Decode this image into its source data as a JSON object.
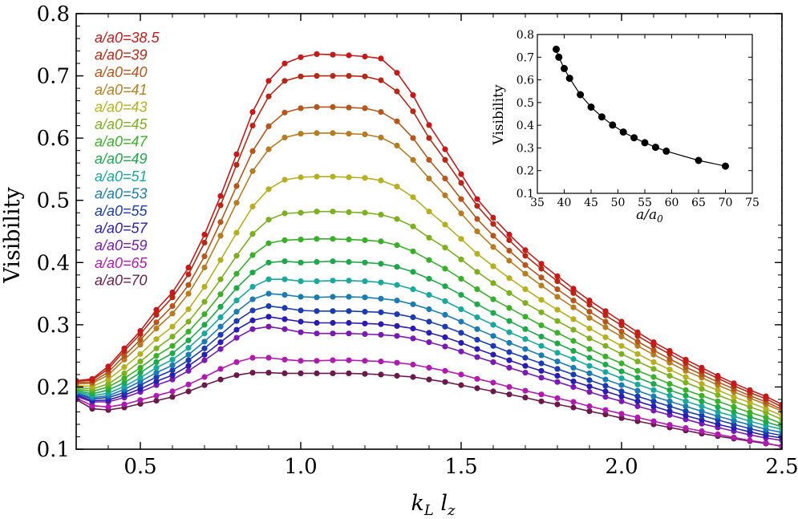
{
  "chart_data": [
    {
      "type": "line",
      "title": "",
      "xlabel": "k_L l_z",
      "ylabel": "Visibility",
      "xlim": [
        0.3,
        2.5
      ],
      "ylim": [
        0.1,
        0.8
      ],
      "xticks": [
        "0.5",
        "1.0",
        "1.5",
        "2.0",
        "2.5"
      ],
      "yticks": [
        "0.1",
        "0.2",
        "0.3",
        "0.4",
        "0.5",
        "0.6",
        "0.7",
        "0.8"
      ],
      "legend_position": "top-left",
      "x": [
        0.3,
        0.35,
        0.4,
        0.45,
        0.5,
        0.55,
        0.6,
        0.65,
        0.7,
        0.75,
        0.8,
        0.85,
        0.9,
        0.95,
        1.0,
        1.05,
        1.1,
        1.15,
        1.2,
        1.25,
        1.3,
        1.35,
        1.4,
        1.45,
        1.5,
        1.55,
        1.6,
        1.65,
        1.7,
        1.75,
        1.8,
        1.85,
        1.9,
        1.95,
        2.0,
        2.05,
        2.1,
        2.15,
        2.2,
        2.25,
        2.3,
        2.35,
        2.4,
        2.45,
        2.5
      ],
      "series": [
        {
          "name": "a/a0=38.5",
          "color": "#c41a1a",
          "values": [
            0.21,
            0.213,
            0.233,
            0.262,
            0.29,
            0.324,
            0.352,
            0.392,
            0.445,
            0.507,
            0.574,
            0.642,
            0.692,
            0.72,
            0.73,
            0.735,
            0.734,
            0.733,
            0.731,
            0.728,
            0.705,
            0.669,
            0.621,
            0.582,
            0.542,
            0.502,
            0.472,
            0.445,
            0.42,
            0.398,
            0.378,
            0.358,
            0.339,
            0.322,
            0.305,
            0.288,
            0.272,
            0.258,
            0.244,
            0.231,
            0.218,
            0.206,
            0.195,
            0.185,
            0.172
          ]
        },
        {
          "name": "a/a0=39",
          "color": "#b52a16",
          "values": [
            0.209,
            0.211,
            0.229,
            0.258,
            0.285,
            0.316,
            0.344,
            0.381,
            0.432,
            0.492,
            0.557,
            0.62,
            0.667,
            0.692,
            0.699,
            0.7,
            0.7,
            0.7,
            0.699,
            0.693,
            0.675,
            0.643,
            0.6,
            0.565,
            0.528,
            0.491,
            0.462,
            0.436,
            0.411,
            0.39,
            0.37,
            0.351,
            0.332,
            0.315,
            0.299,
            0.282,
            0.267,
            0.253,
            0.239,
            0.226,
            0.214,
            0.202,
            0.191,
            0.181,
            0.168
          ]
        },
        {
          "name": "a/a0=40",
          "color": "#b5561c",
          "values": [
            0.207,
            0.208,
            0.224,
            0.25,
            0.276,
            0.304,
            0.33,
            0.364,
            0.41,
            0.465,
            0.523,
            0.579,
            0.619,
            0.641,
            0.648,
            0.65,
            0.65,
            0.649,
            0.648,
            0.642,
            0.627,
            0.6,
            0.565,
            0.535,
            0.502,
            0.47,
            0.443,
            0.419,
            0.396,
            0.376,
            0.357,
            0.339,
            0.321,
            0.305,
            0.289,
            0.273,
            0.259,
            0.245,
            0.232,
            0.22,
            0.208,
            0.197,
            0.186,
            0.176,
            0.164
          ]
        },
        {
          "name": "a/a0=41",
          "color": "#b67c22",
          "values": [
            0.205,
            0.206,
            0.219,
            0.244,
            0.268,
            0.294,
            0.318,
            0.35,
            0.392,
            0.443,
            0.496,
            0.547,
            0.582,
            0.601,
            0.607,
            0.608,
            0.608,
            0.607,
            0.606,
            0.601,
            0.588,
            0.565,
            0.535,
            0.508,
            0.479,
            0.45,
            0.425,
            0.403,
            0.382,
            0.363,
            0.345,
            0.328,
            0.311,
            0.296,
            0.281,
            0.266,
            0.252,
            0.239,
            0.226,
            0.215,
            0.203,
            0.192,
            0.182,
            0.172,
            0.161
          ]
        },
        {
          "name": "a/a0=43",
          "color": "#b5b020",
          "values": [
            0.202,
            0.201,
            0.212,
            0.232,
            0.253,
            0.277,
            0.297,
            0.325,
            0.361,
            0.404,
            0.448,
            0.49,
            0.518,
            0.533,
            0.537,
            0.538,
            0.538,
            0.537,
            0.536,
            0.532,
            0.522,
            0.505,
            0.482,
            0.461,
            0.438,
            0.414,
            0.394,
            0.375,
            0.357,
            0.34,
            0.324,
            0.309,
            0.294,
            0.28,
            0.266,
            0.253,
            0.24,
            0.228,
            0.216,
            0.205,
            0.195,
            0.184,
            0.175,
            0.165,
            0.154
          ]
        },
        {
          "name": "a/a0=45",
          "color": "#7cb020",
          "values": [
            0.199,
            0.197,
            0.205,
            0.222,
            0.241,
            0.262,
            0.281,
            0.305,
            0.337,
            0.373,
            0.411,
            0.446,
            0.469,
            0.479,
            0.48,
            0.482,
            0.482,
            0.481,
            0.48,
            0.477,
            0.47,
            0.458,
            0.44,
            0.424,
            0.405,
            0.385,
            0.367,
            0.351,
            0.335,
            0.32,
            0.306,
            0.292,
            0.278,
            0.266,
            0.253,
            0.241,
            0.229,
            0.218,
            0.207,
            0.197,
            0.187,
            0.177,
            0.168,
            0.159,
            0.148
          ]
        },
        {
          "name": "a/a0=47",
          "color": "#3ab02a",
          "values": [
            0.197,
            0.193,
            0.2,
            0.214,
            0.231,
            0.25,
            0.266,
            0.289,
            0.317,
            0.349,
            0.382,
            0.412,
            0.431,
            0.436,
            0.437,
            0.438,
            0.438,
            0.437,
            0.436,
            0.434,
            0.428,
            0.418,
            0.404,
            0.39,
            0.374,
            0.357,
            0.341,
            0.327,
            0.313,
            0.299,
            0.287,
            0.274,
            0.261,
            0.249,
            0.238,
            0.226,
            0.216,
            0.205,
            0.195,
            0.186,
            0.177,
            0.168,
            0.159,
            0.151,
            0.141
          ]
        },
        {
          "name": "a/a0=49",
          "color": "#1fa84a",
          "values": [
            0.195,
            0.189,
            0.195,
            0.207,
            0.223,
            0.24,
            0.254,
            0.275,
            0.3,
            0.329,
            0.359,
            0.384,
            0.4,
            0.402,
            0.4,
            0.401,
            0.402,
            0.401,
            0.4,
            0.398,
            0.393,
            0.385,
            0.374,
            0.362,
            0.348,
            0.333,
            0.319,
            0.306,
            0.293,
            0.281,
            0.27,
            0.258,
            0.247,
            0.236,
            0.225,
            0.215,
            0.205,
            0.195,
            0.186,
            0.177,
            0.168,
            0.16,
            0.152,
            0.144,
            0.136
          ]
        },
        {
          "name": "a/a0=51",
          "color": "#1aa89c",
          "values": [
            0.193,
            0.186,
            0.19,
            0.201,
            0.215,
            0.231,
            0.244,
            0.263,
            0.286,
            0.312,
            0.339,
            0.361,
            0.373,
            0.373,
            0.37,
            0.37,
            0.371,
            0.371,
            0.37,
            0.368,
            0.364,
            0.357,
            0.348,
            0.338,
            0.325,
            0.312,
            0.3,
            0.288,
            0.277,
            0.266,
            0.255,
            0.245,
            0.234,
            0.224,
            0.214,
            0.204,
            0.195,
            0.186,
            0.177,
            0.169,
            0.16,
            0.153,
            0.145,
            0.138,
            0.132
          ]
        },
        {
          "name": "a/a0=53",
          "color": "#1a7cb0",
          "values": [
            0.191,
            0.183,
            0.186,
            0.196,
            0.209,
            0.223,
            0.235,
            0.252,
            0.273,
            0.297,
            0.321,
            0.341,
            0.35,
            0.348,
            0.345,
            0.344,
            0.345,
            0.345,
            0.344,
            0.342,
            0.339,
            0.333,
            0.325,
            0.316,
            0.305,
            0.293,
            0.282,
            0.271,
            0.261,
            0.251,
            0.241,
            0.231,
            0.222,
            0.212,
            0.203,
            0.194,
            0.185,
            0.177,
            0.169,
            0.161,
            0.153,
            0.146,
            0.139,
            0.132,
            0.127
          ]
        },
        {
          "name": "a/a0=55",
          "color": "#1a3cb0",
          "values": [
            0.189,
            0.181,
            0.183,
            0.191,
            0.203,
            0.216,
            0.227,
            0.243,
            0.262,
            0.284,
            0.306,
            0.323,
            0.33,
            0.327,
            0.323,
            0.322,
            0.322,
            0.322,
            0.321,
            0.32,
            0.317,
            0.312,
            0.305,
            0.297,
            0.287,
            0.276,
            0.266,
            0.256,
            0.247,
            0.238,
            0.229,
            0.22,
            0.211,
            0.202,
            0.193,
            0.185,
            0.177,
            0.169,
            0.161,
            0.154,
            0.147,
            0.14,
            0.133,
            0.127,
            0.122
          ]
        },
        {
          "name": "a/a0=57",
          "color": "#2a1cb0",
          "values": [
            0.187,
            0.178,
            0.179,
            0.187,
            0.197,
            0.209,
            0.219,
            0.234,
            0.252,
            0.272,
            0.292,
            0.307,
            0.313,
            0.309,
            0.305,
            0.303,
            0.303,
            0.303,
            0.302,
            0.301,
            0.298,
            0.294,
            0.287,
            0.28,
            0.271,
            0.261,
            0.252,
            0.243,
            0.234,
            0.226,
            0.218,
            0.209,
            0.201,
            0.193,
            0.185,
            0.177,
            0.169,
            0.161,
            0.154,
            0.147,
            0.14,
            0.134,
            0.128,
            0.122,
            0.118
          ]
        },
        {
          "name": "a/a0=59",
          "color": "#7a1ab0",
          "values": [
            0.185,
            0.176,
            0.176,
            0.183,
            0.192,
            0.203,
            0.212,
            0.226,
            0.243,
            0.261,
            0.279,
            0.293,
            0.297,
            0.293,
            0.288,
            0.286,
            0.286,
            0.286,
            0.285,
            0.284,
            0.282,
            0.278,
            0.272,
            0.265,
            0.257,
            0.248,
            0.24,
            0.231,
            0.223,
            0.215,
            0.208,
            0.2,
            0.192,
            0.184,
            0.177,
            0.169,
            0.162,
            0.155,
            0.148,
            0.141,
            0.135,
            0.129,
            0.123,
            0.118,
            0.114
          ]
        },
        {
          "name": "a/a0=65",
          "color": "#b01ab0",
          "values": [
            0.182,
            0.17,
            0.168,
            0.172,
            0.179,
            0.186,
            0.193,
            0.204,
            0.216,
            0.229,
            0.24,
            0.247,
            0.247,
            0.244,
            0.242,
            0.242,
            0.243,
            0.243,
            0.242,
            0.241,
            0.239,
            0.236,
            0.231,
            0.226,
            0.22,
            0.213,
            0.207,
            0.2,
            0.194,
            0.188,
            0.182,
            0.176,
            0.169,
            0.163,
            0.157,
            0.151,
            0.145,
            0.139,
            0.134,
            0.129,
            0.124,
            0.119,
            0.114,
            0.11,
            0.104
          ]
        },
        {
          "name": "a/a0=70",
          "color": "#6a1a4a",
          "values": [
            0.18,
            0.165,
            0.163,
            0.167,
            0.173,
            0.178,
            0.184,
            0.193,
            0.203,
            0.212,
            0.219,
            0.223,
            0.223,
            0.222,
            0.222,
            0.222,
            0.222,
            0.222,
            0.221,
            0.22,
            0.218,
            0.216,
            0.212,
            0.208,
            0.203,
            0.198,
            0.193,
            0.188,
            0.183,
            0.177,
            0.172,
            0.167,
            0.161,
            0.156,
            0.15,
            0.145,
            0.14,
            0.135,
            0.13,
            0.125,
            0.121,
            0.117,
            0.113,
            0.109,
            0.105
          ]
        }
      ]
    },
    {
      "type": "line",
      "title": "",
      "xlabel": "a/a0",
      "ylabel": "Visibility",
      "xlim": [
        35,
        75
      ],
      "ylim": [
        0.1,
        0.8
      ],
      "xticks": [
        "35",
        "40",
        "45",
        "50",
        "55",
        "60",
        "65",
        "70",
        "75"
      ],
      "yticks": [
        "0.1",
        "0.2",
        "0.3",
        "0.4",
        "0.5",
        "0.6",
        "0.7",
        "0.8"
      ],
      "legend_position": "none",
      "x": [
        38.5,
        39,
        40,
        41,
        43,
        45,
        47,
        49,
        51,
        53,
        55,
        57,
        59,
        65,
        70
      ],
      "values": [
        0.735,
        0.7,
        0.65,
        0.607,
        0.535,
        0.48,
        0.437,
        0.401,
        0.37,
        0.345,
        0.323,
        0.303,
        0.286,
        0.245,
        0.22
      ]
    }
  ]
}
